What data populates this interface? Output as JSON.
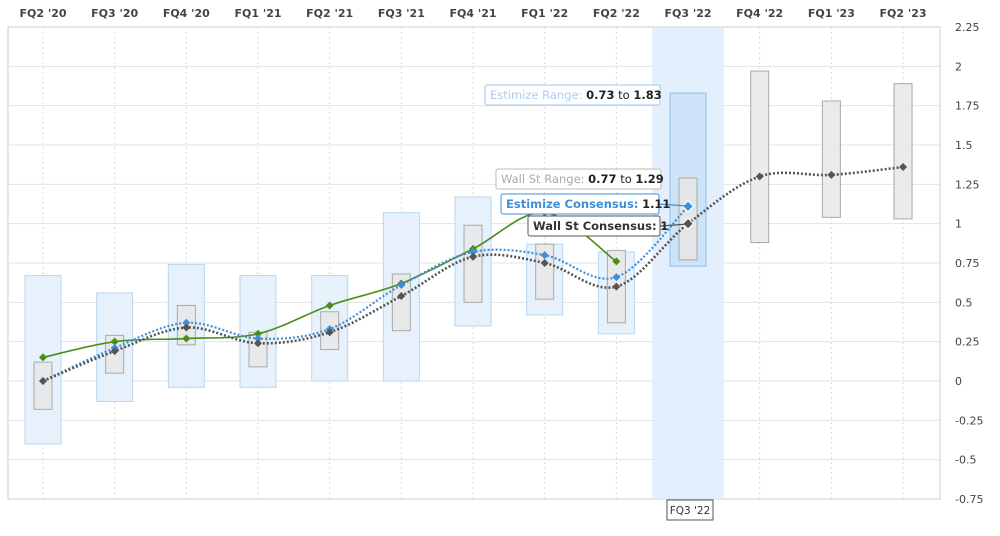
{
  "chart_data": {
    "type": "line",
    "categories": [
      "FQ2 '20",
      "FQ3 '20",
      "FQ4 '20",
      "FQ1 '21",
      "FQ2 '21",
      "FQ3 '21",
      "FQ4 '21",
      "FQ1 '22",
      "FQ2 '22",
      "FQ3 '22",
      "FQ4 '22",
      "FQ1 '23",
      "FQ2 '23"
    ],
    "ylim": [
      -0.75,
      2.25
    ],
    "yticks": [
      "2.25",
      "2",
      "1.75",
      "1.5",
      "1.25",
      "1",
      "0.75",
      "0.5",
      "0.25",
      "0",
      "-0.25",
      "-0.5",
      "-0.75"
    ],
    "ytick_values": [
      2.25,
      2,
      1.75,
      1.5,
      1.25,
      1,
      0.75,
      0.5,
      0.25,
      0,
      -0.25,
      -0.5,
      -0.75
    ],
    "highlight_category": "FQ3 '22",
    "series": [
      {
        "values": [
          0.15,
          0.25,
          0.27,
          0.3,
          0.48,
          0.62,
          0.84,
          1.07,
          0.76,
          null,
          null,
          null,
          null
        ]
      },
      {
        "values": [
          0.0,
          0.21,
          0.37,
          0.27,
          0.33,
          0.61,
          0.82,
          0.8,
          0.66,
          1.11,
          null,
          null,
          null
        ]
      },
      {
        "values": [
          0.0,
          0.19,
          0.34,
          0.24,
          0.31,
          0.54,
          0.79,
          0.75,
          0.6,
          1.0,
          1.3,
          1.31,
          1.36
        ]
      }
    ],
    "estimize_range": [
      [
        -0.4,
        0.67
      ],
      [
        -0.13,
        0.56
      ],
      [
        -0.04,
        0.74
      ],
      [
        -0.04,
        0.67
      ],
      [
        0.0,
        0.67
      ],
      [
        0.0,
        1.07
      ],
      [
        0.35,
        1.17
      ],
      [
        0.42,
        0.87
      ],
      [
        0.3,
        0.82
      ],
      [
        0.73,
        1.83
      ],
      null,
      null,
      null
    ],
    "wallst_range": [
      [
        -0.18,
        0.12
      ],
      [
        0.05,
        0.29
      ],
      [
        0.23,
        0.48
      ],
      [
        0.09,
        0.31
      ],
      [
        0.2,
        0.44
      ],
      [
        0.32,
        0.68
      ],
      [
        0.5,
        0.99
      ],
      [
        0.52,
        0.87
      ],
      [
        0.37,
        0.83
      ],
      [
        0.77,
        1.29
      ],
      [
        0.88,
        1.97
      ],
      [
        1.04,
        1.78
      ],
      [
        1.03,
        1.89
      ]
    ],
    "colors": {
      "green": "#4a8d1b",
      "blue": "#3e8fd8",
      "dark": "#555555",
      "range_fill": "#e6f1fc",
      "range_stroke": "#b9d6f2",
      "wallst_fill": "#e8e8e8",
      "wallst_stroke": "#a9a9a9",
      "highlight": "#deecfb"
    },
    "tooltips": {
      "estimize_range": {
        "label": "Estimize Range:",
        "low": "0.73",
        "to": "to",
        "high": "1.83"
      },
      "wallst_range": {
        "label": "Wall St Range:",
        "low": "0.77",
        "to": "to",
        "high": "1.29"
      },
      "estimize_consensus": {
        "label": "Estimize Consensus:",
        "value": "1.11"
      },
      "wallst_consensus": {
        "label": "Wall St Consensus:",
        "value": "1"
      }
    },
    "highlight_label": "FQ3 '22"
  }
}
